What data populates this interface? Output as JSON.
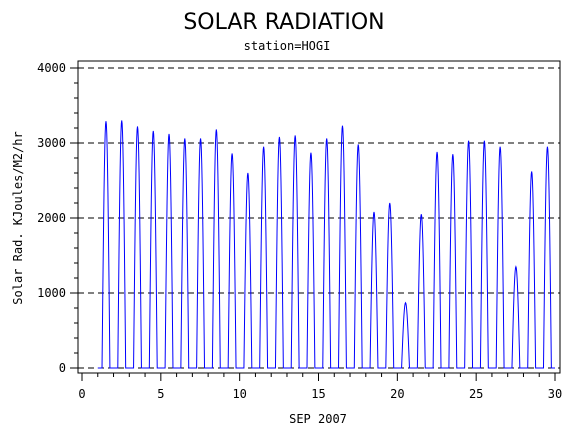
{
  "chart_data": {
    "type": "line",
    "title": "SOLAR RADIATION",
    "subtitle": "station=HOGI",
    "xlabel": "SEP 2007",
    "ylabel": "Solar Rad. KJoules/M2/hr",
    "xlim": [
      0,
      30
    ],
    "ylim": [
      0,
      4000
    ],
    "x_ticks": [
      0,
      5,
      10,
      15,
      20,
      25,
      30
    ],
    "y_ticks": [
      0,
      1000,
      2000,
      3000,
      4000
    ],
    "grid": "horizontal dashed at y ticks",
    "line_color": "#0000ff",
    "series": [
      {
        "daily_peaks": [
          {
            "day": 1,
            "peak": 3290
          },
          {
            "day": 2,
            "peak": 3300
          },
          {
            "day": 3,
            "peak": 3220
          },
          {
            "day": 4,
            "peak": 3160
          },
          {
            "day": 5,
            "peak": 3120
          },
          {
            "day": 6,
            "peak": 3060
          },
          {
            "day": 7,
            "peak": 3060
          },
          {
            "day": 8,
            "peak": 3180
          },
          {
            "day": 9,
            "peak": 2860
          },
          {
            "day": 10,
            "peak": 2600
          },
          {
            "day": 11,
            "peak": 2950
          },
          {
            "day": 12,
            "peak": 3080
          },
          {
            "day": 13,
            "peak": 3100
          },
          {
            "day": 14,
            "peak": 2870
          },
          {
            "day": 15,
            "peak": 3060
          },
          {
            "day": 16,
            "peak": 3230
          },
          {
            "day": 17,
            "peak": 2980
          },
          {
            "day": 18,
            "peak": 2080
          },
          {
            "day": 19,
            "peak": 2200
          },
          {
            "day": 20,
            "peak": 870
          },
          {
            "day": 21,
            "peak": 2050
          },
          {
            "day": 22,
            "peak": 2880
          },
          {
            "day": 23,
            "peak": 2850
          },
          {
            "day": 24,
            "peak": 3030
          },
          {
            "day": 25,
            "peak": 3030
          },
          {
            "day": 26,
            "peak": 2950
          },
          {
            "day": 27,
            "peak": 1350
          },
          {
            "day": 28,
            "peak": 2620
          },
          {
            "day": 29,
            "peak": 2950
          }
        ]
      }
    ]
  }
}
